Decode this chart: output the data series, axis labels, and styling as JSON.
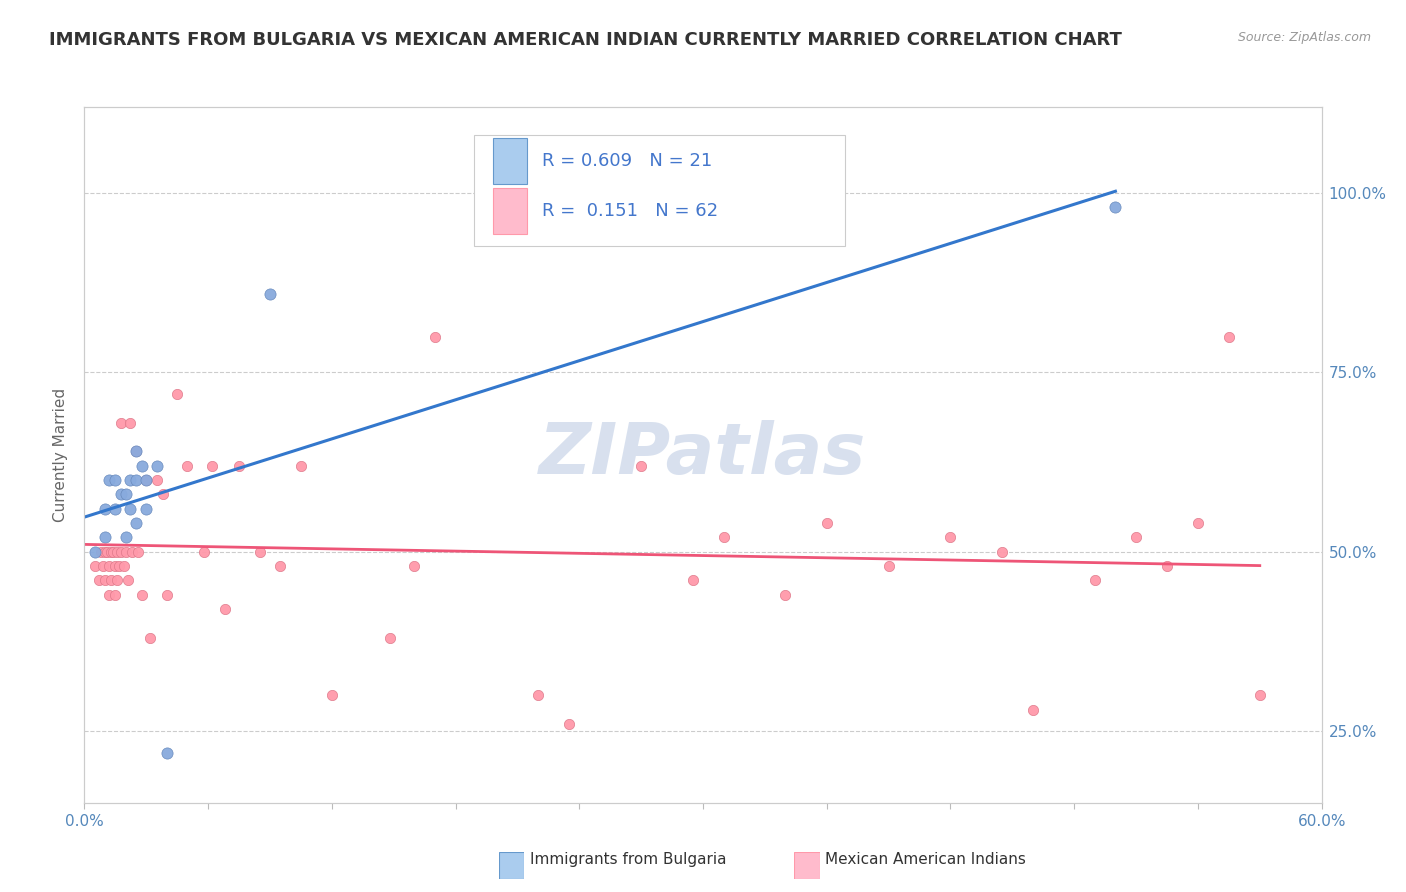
{
  "title": "IMMIGRANTS FROM BULGARIA VS MEXICAN AMERICAN INDIAN CURRENTLY MARRIED CORRELATION CHART",
  "source": "Source: ZipAtlas.com",
  "ylabel": "Currently Married",
  "xlim": [
    0.0,
    0.6
  ],
  "ylim": [
    0.15,
    1.12
  ],
  "xticks": [
    0.0,
    0.06,
    0.12,
    0.18,
    0.24,
    0.3,
    0.36,
    0.42,
    0.48,
    0.54,
    0.6
  ],
  "xticklabels": [
    "0.0%",
    "",
    "",
    "",
    "",
    "",
    "",
    "",
    "",
    "",
    "60.0%"
  ],
  "ytick_positions": [
    0.25,
    0.5,
    0.75,
    1.0
  ],
  "ytick_labels": [
    "25.0%",
    "50.0%",
    "75.0%",
    "100.0%"
  ],
  "blue_line_color": "#3377CC",
  "blue_scatter_color": "#88AADD",
  "blue_scatter_edge": "#6688BB",
  "pink_line_color": "#EE5577",
  "pink_scatter_color": "#FF99AA",
  "pink_scatter_edge": "#DD7788",
  "legend_blue_fill": "#AACCEE",
  "legend_blue_edge": "#6699CC",
  "legend_pink_fill": "#FFBBCC",
  "legend_pink_edge": "#FF99AA",
  "blue_R": 0.609,
  "blue_N": 21,
  "pink_R": 0.151,
  "pink_N": 62,
  "blue_points_x": [
    0.005,
    0.01,
    0.01,
    0.012,
    0.015,
    0.015,
    0.018,
    0.02,
    0.02,
    0.022,
    0.022,
    0.025,
    0.025,
    0.025,
    0.028,
    0.03,
    0.03,
    0.035,
    0.04,
    0.09,
    0.5
  ],
  "blue_points_y": [
    0.5,
    0.52,
    0.56,
    0.6,
    0.56,
    0.6,
    0.58,
    0.52,
    0.58,
    0.56,
    0.6,
    0.54,
    0.6,
    0.64,
    0.62,
    0.56,
    0.6,
    0.62,
    0.22,
    0.86,
    0.98
  ],
  "pink_points_x": [
    0.005,
    0.007,
    0.008,
    0.009,
    0.01,
    0.01,
    0.011,
    0.012,
    0.012,
    0.013,
    0.013,
    0.014,
    0.015,
    0.015,
    0.016,
    0.016,
    0.017,
    0.018,
    0.018,
    0.019,
    0.02,
    0.021,
    0.022,
    0.023,
    0.025,
    0.026,
    0.028,
    0.03,
    0.032,
    0.035,
    0.038,
    0.04,
    0.045,
    0.05,
    0.058,
    0.062,
    0.068,
    0.075,
    0.085,
    0.095,
    0.105,
    0.12,
    0.148,
    0.16,
    0.17,
    0.22,
    0.235,
    0.27,
    0.295,
    0.31,
    0.34,
    0.36,
    0.39,
    0.42,
    0.445,
    0.46,
    0.49,
    0.51,
    0.525,
    0.54,
    0.555,
    0.57
  ],
  "pink_points_y": [
    0.48,
    0.46,
    0.5,
    0.48,
    0.5,
    0.46,
    0.5,
    0.44,
    0.48,
    0.5,
    0.46,
    0.5,
    0.48,
    0.44,
    0.5,
    0.46,
    0.48,
    0.68,
    0.5,
    0.48,
    0.5,
    0.46,
    0.68,
    0.5,
    0.64,
    0.5,
    0.44,
    0.6,
    0.38,
    0.6,
    0.58,
    0.44,
    0.72,
    0.62,
    0.5,
    0.62,
    0.42,
    0.62,
    0.5,
    0.48,
    0.62,
    0.3,
    0.38,
    0.48,
    0.8,
    0.3,
    0.26,
    0.62,
    0.46,
    0.52,
    0.44,
    0.54,
    0.48,
    0.52,
    0.5,
    0.28,
    0.46,
    0.52,
    0.48,
    0.54,
    0.8,
    0.3
  ],
  "watermark_text": "ZIPatlas",
  "watermark_color": "#C8D4E8",
  "title_fontsize": 13,
  "tick_fontsize": 11,
  "ylabel_fontsize": 11,
  "legend_fontsize": 13
}
